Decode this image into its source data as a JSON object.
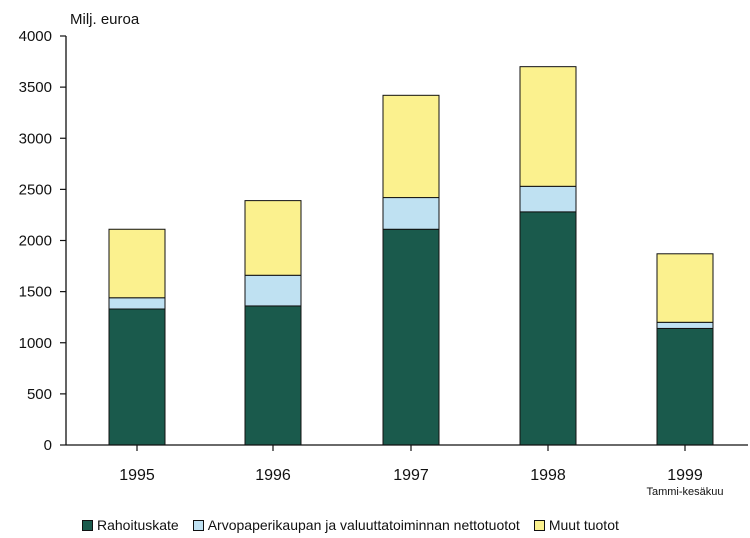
{
  "chart_data": {
    "type": "bar",
    "stacked": true,
    "unit_label": "Milj. euroa",
    "categories": [
      "1995",
      "1996",
      "1997",
      "1998",
      "1999"
    ],
    "category_sublabels": [
      "",
      "",
      "",
      "",
      "Tammi-kesäkuu"
    ],
    "series": [
      {
        "name": "Rahoituskate",
        "values": [
          1330,
          1360,
          2110,
          2280,
          1140
        ],
        "color": "#1a5a4c"
      },
      {
        "name": "Arvopaperikaupan ja valuuttatoiminnan nettotuotot",
        "values": [
          110,
          300,
          310,
          250,
          60
        ],
        "color": "#bfe1f2"
      },
      {
        "name": "Muut tuotot",
        "values": [
          670,
          730,
          1000,
          1170,
          670
        ],
        "color": "#fbf18e"
      }
    ],
    "ylim": [
      0,
      4000
    ],
    "yticks": [
      "0",
      "500",
      "1000",
      "1500",
      "2000",
      "2500",
      "3000",
      "3500",
      "4000"
    ],
    "legend_position": "bottom",
    "grid": false
  }
}
